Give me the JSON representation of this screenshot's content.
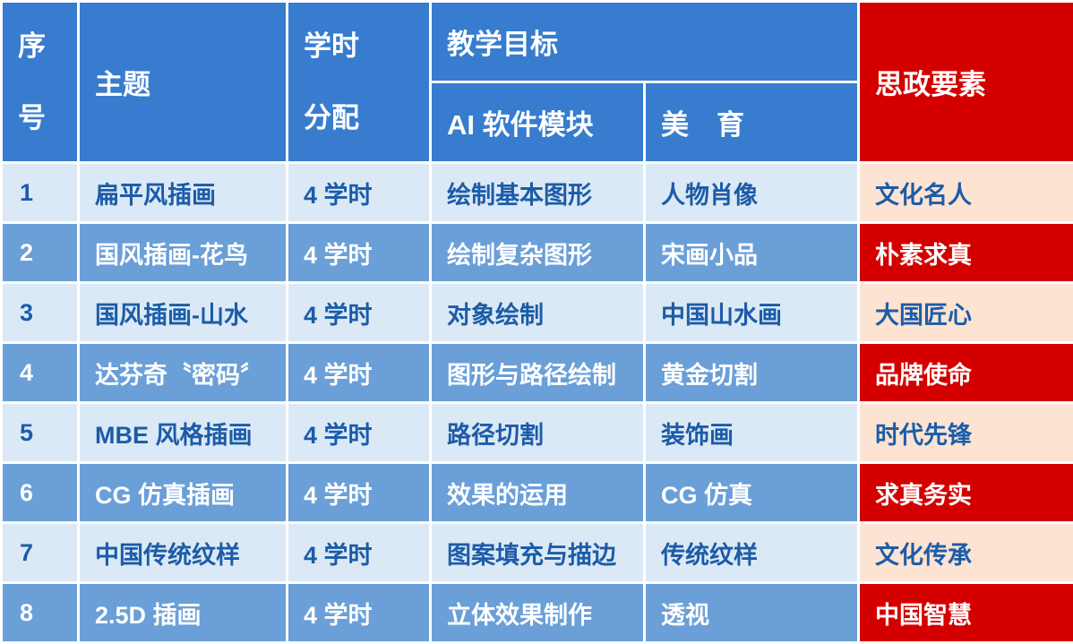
{
  "table": {
    "headers": {
      "serial": "序\n号",
      "topic": "主题",
      "hours": "学时\n分配",
      "objectives": "教学目标",
      "ai_module": "AI 软件模块",
      "aesthetics": "美　育",
      "ideology": "思政要素"
    },
    "rows": [
      {
        "no": "1",
        "topic": "扁平风插画",
        "hours": "4 学时",
        "ai": "绘制基本图形",
        "art": "人物肖像",
        "ideology": "文化名人"
      },
      {
        "no": "2",
        "topic": "国风插画-花鸟",
        "hours": "4 学时",
        "ai": "绘制复杂图形",
        "art": "宋画小品",
        "ideology": "朴素求真"
      },
      {
        "no": "3",
        "topic": "国风插画-山水",
        "hours": "4 学时",
        "ai": "对象绘制",
        "art": "中国山水画",
        "ideology": "大国匠心"
      },
      {
        "no": "4",
        "topic": "达芬奇〝密码〞",
        "hours": "4 学时",
        "ai": "图形与路径绘制",
        "art": "黄金切割",
        "ideology": "品牌使命"
      },
      {
        "no": "5",
        "topic": "MBE 风格插画",
        "hours": "4 学时",
        "ai": "路径切割",
        "art": "装饰画",
        "ideology": "时代先锋"
      },
      {
        "no": "6",
        "topic": "CG 仿真插画",
        "hours": "4 学时",
        "ai": "效果的运用",
        "art": "CG 仿真",
        "ideology": "求真务实"
      },
      {
        "no": "7",
        "topic": "中国传统纹样",
        "hours": "4 学时",
        "ai": "图案填充与描边",
        "art": "传统纹样",
        "ideology": "文化传承"
      },
      {
        "no": "8",
        "topic": "2.5D 插画",
        "hours": "4 学时",
        "ai": "立体效果制作",
        "art": "透视",
        "ideology": "中国智慧"
      }
    ]
  },
  "colors": {
    "header_blue": "#377CCE",
    "header_red": "#D40000",
    "row_light_bg": "#DBE9F6",
    "row_dark_bg": "#6A9FD8",
    "ideology_light_bg": "#FCE3D2",
    "ideology_dark_bg": "#D40000",
    "text_dark_blue": "#1C5CA8",
    "text_white": "#ffffff",
    "grid_white": "#ffffff"
  }
}
